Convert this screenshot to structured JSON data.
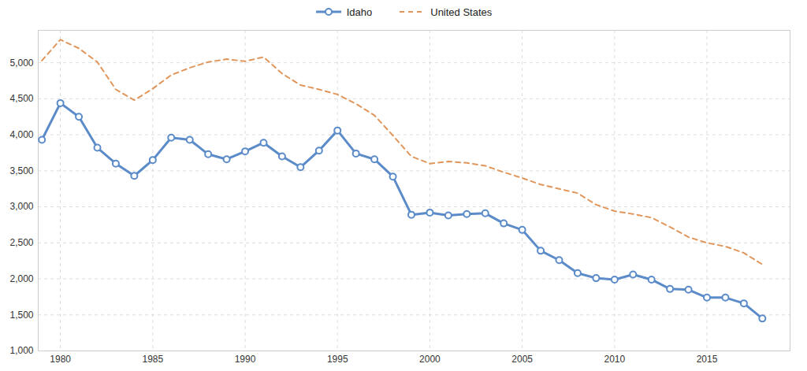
{
  "chart_data": {
    "type": "line",
    "x": [
      1979,
      1980,
      1981,
      1982,
      1983,
      1984,
      1985,
      1986,
      1987,
      1988,
      1989,
      1990,
      1991,
      1992,
      1993,
      1994,
      1995,
      1996,
      1997,
      1998,
      1999,
      2000,
      2001,
      2002,
      2003,
      2004,
      2005,
      2006,
      2007,
      2008,
      2009,
      2010,
      2011,
      2012,
      2013,
      2014,
      2015,
      2016,
      2017,
      2018
    ],
    "series": [
      {
        "name": "Idaho",
        "color": "#5b8bc9",
        "marker": "circle",
        "line_style": "solid",
        "values": [
          3930,
          4440,
          4250,
          3820,
          3600,
          3430,
          3650,
          3960,
          3930,
          3730,
          3660,
          3770,
          3890,
          3700,
          3550,
          3780,
          4060,
          3740,
          3660,
          3420,
          2890,
          2920,
          2880,
          2900,
          2910,
          2770,
          2680,
          2390,
          2260,
          2080,
          2010,
          1990,
          2060,
          1990,
          1860,
          1850,
          1740,
          1740,
          1660,
          1450
        ]
      },
      {
        "name": "United States",
        "color": "#e0955a",
        "marker": "none",
        "line_style": "dashed",
        "values": [
          5030,
          5320,
          5200,
          5010,
          4630,
          4480,
          4640,
          4830,
          4930,
          5010,
          5050,
          5020,
          5080,
          4850,
          4690,
          4630,
          4560,
          4430,
          4270,
          3990,
          3700,
          3600,
          3630,
          3610,
          3570,
          3480,
          3400,
          3310,
          3250,
          3190,
          3030,
          2940,
          2900,
          2850,
          2720,
          2580,
          2500,
          2450,
          2360,
          2200
        ]
      }
    ],
    "xlim": [
      1978.8,
      2019.5
    ],
    "xticks": [
      1980,
      1985,
      1990,
      1995,
      2000,
      2005,
      2010,
      2015
    ],
    "ylim": [
      1000,
      5450
    ],
    "yticks": [
      {
        "value": 1000,
        "label": "1,000"
      },
      {
        "value": 1500,
        "label": "1,500"
      },
      {
        "value": 2000,
        "label": "2,000"
      },
      {
        "value": 2500,
        "label": "2,500"
      },
      {
        "value": 3000,
        "label": "3,000"
      },
      {
        "value": 3500,
        "label": "3,500"
      },
      {
        "value": 4000,
        "label": "4,000"
      },
      {
        "value": 4500,
        "label": "4,500"
      },
      {
        "value": 5000,
        "label": "5,000"
      }
    ],
    "grid": true,
    "legend": "top"
  }
}
